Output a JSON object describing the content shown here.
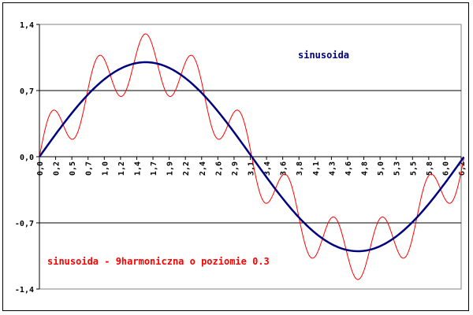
{
  "chart_data": {
    "type": "line",
    "title": "",
    "xlabel": "",
    "ylabel": "",
    "xlim": [
      0,
      6.2
    ],
    "ylim": [
      -1.4,
      1.4
    ],
    "y_ticks": [
      "1,4",
      "0,7",
      "0,0",
      "-0,7",
      "-1,4"
    ],
    "y_tick_values": [
      1.4,
      0.7,
      0.0,
      -0.7,
      -1.4
    ],
    "x_ticks": [
      "0,0",
      "0,2",
      "0,5",
      "0,7",
      "1,0",
      "1,2",
      "1,4",
      "1,7",
      "1,9",
      "2,2",
      "2,4",
      "2,6",
      "2,9",
      "3,1",
      "3,4",
      "3,6",
      "3,8",
      "4,1",
      "4,3",
      "4,6",
      "4,8",
      "5,0",
      "5,3",
      "5,5",
      "5,8",
      "6,0",
      "6,2"
    ],
    "x_tick_values": [
      0.0,
      0.24,
      0.48,
      0.72,
      0.96,
      1.2,
      1.44,
      1.68,
      1.92,
      2.16,
      2.4,
      2.64,
      2.88,
      3.12,
      3.36,
      3.6,
      3.84,
      4.08,
      4.32,
      4.56,
      4.8,
      5.04,
      5.28,
      5.52,
      5.76,
      6.0,
      6.24
    ],
    "grid": "horizontal lines at ±0.7",
    "series": [
      {
        "name": "sinusoida",
        "formula": "sin(x)",
        "color": "#00007f",
        "x_range": [
          0,
          6.28
        ],
        "points": 200
      },
      {
        "name": "sinusoida - 9harmoniczna o poziomie 0.3",
        "formula": "sin(x) + 0.3*sin(9x)",
        "color": "#ff0000",
        "x_range": [
          0,
          6.28
        ],
        "points": 400
      }
    ],
    "annotations": [
      {
        "text": "sinusoida",
        "color": "#00007f"
      },
      {
        "text": "sinusoida - 9harmoniczna o poziomie 0.3",
        "color": "#ff0000"
      }
    ]
  }
}
